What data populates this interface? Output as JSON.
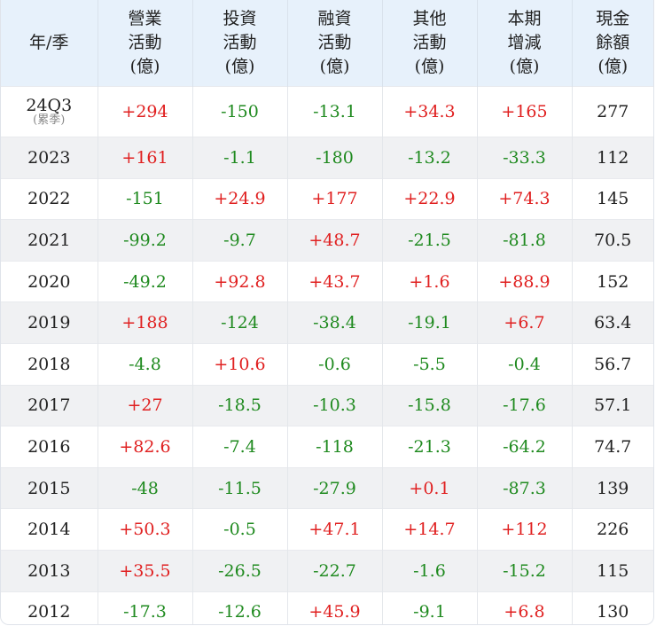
{
  "headers": [
    {
      "lines": [
        "年/季"
      ]
    },
    {
      "lines": [
        "營業",
        "活動",
        "(億)"
      ]
    },
    {
      "lines": [
        "投資",
        "活動",
        "(億)"
      ]
    },
    {
      "lines": [
        "融資",
        "活動",
        "(億)"
      ]
    },
    {
      "lines": [
        "其他",
        "活動",
        "(億)"
      ]
    },
    {
      "lines": [
        "本期",
        "增減",
        "(億)"
      ]
    },
    {
      "lines": [
        "現金",
        "餘額",
        "(億)"
      ]
    }
  ],
  "colors": {
    "positive": "#e02020",
    "negative": "#1f8a1f",
    "neutral": "#222222",
    "header_bg": "#e7f1fb",
    "stripe_bg": "#f0f1f3"
  },
  "rows": [
    {
      "period": "24Q3",
      "sub": "(累季)",
      "operating": "+294",
      "investing": "-150",
      "financing": "-13.1",
      "other": "+34.3",
      "change": "+165",
      "balance": "277"
    },
    {
      "period": "2023",
      "operating": "+161",
      "investing": "-1.1",
      "financing": "-180",
      "other": "-13.2",
      "change": "-33.3",
      "balance": "112"
    },
    {
      "period": "2022",
      "operating": "-151",
      "investing": "+24.9",
      "financing": "+177",
      "other": "+22.9",
      "change": "+74.3",
      "balance": "145"
    },
    {
      "period": "2021",
      "operating": "-99.2",
      "investing": "-9.7",
      "financing": "+48.7",
      "other": "-21.5",
      "change": "-81.8",
      "balance": "70.5"
    },
    {
      "period": "2020",
      "operating": "-49.2",
      "investing": "+92.8",
      "financing": "+43.7",
      "other": "+1.6",
      "change": "+88.9",
      "balance": "152"
    },
    {
      "period": "2019",
      "operating": "+188",
      "investing": "-124",
      "financing": "-38.4",
      "other": "-19.1",
      "change": "+6.7",
      "balance": "63.4"
    },
    {
      "period": "2018",
      "operating": "-4.8",
      "investing": "+10.6",
      "financing": "-0.6",
      "other": "-5.5",
      "change": "-0.4",
      "balance": "56.7"
    },
    {
      "period": "2017",
      "operating": "+27",
      "investing": "-18.5",
      "financing": "-10.3",
      "other": "-15.8",
      "change": "-17.6",
      "balance": "57.1"
    },
    {
      "period": "2016",
      "operating": "+82.6",
      "investing": "-7.4",
      "financing": "-118",
      "other": "-21.3",
      "change": "-64.2",
      "balance": "74.7"
    },
    {
      "period": "2015",
      "operating": "-48",
      "investing": "-11.5",
      "financing": "-27.9",
      "other": "+0.1",
      "change": "-87.3",
      "balance": "139"
    },
    {
      "period": "2014",
      "operating": "+50.3",
      "investing": "-0.5",
      "financing": "+47.1",
      "other": "+14.7",
      "change": "+112",
      "balance": "226"
    },
    {
      "period": "2013",
      "operating": "+35.5",
      "investing": "-26.5",
      "financing": "-22.7",
      "other": "-1.6",
      "change": "-15.2",
      "balance": "115"
    },
    {
      "period": "2012",
      "operating": "-17.3",
      "investing": "-12.6",
      "financing": "+45.9",
      "other": "-9.1",
      "change": "+6.8",
      "balance": "130"
    }
  ]
}
